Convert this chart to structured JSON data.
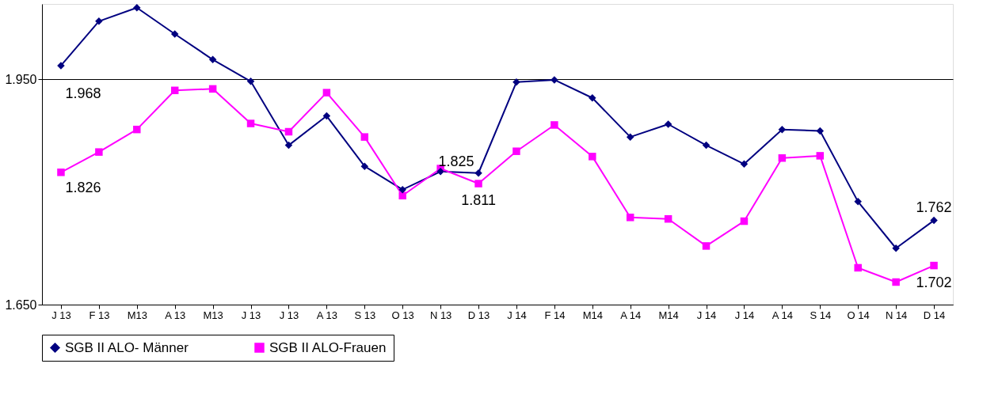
{
  "chart_data": {
    "type": "line",
    "categories": [
      "J 13",
      "F 13",
      "M13",
      "A 13",
      "M13",
      "J 13",
      "J 13",
      "A 13",
      "S 13",
      "O 13",
      "N 13",
      "D 13",
      "J 14",
      "F 14",
      "M14",
      "A 14",
      "M14",
      "J 14",
      "J 14",
      "A 14",
      "S 14",
      "O 14",
      "N 14",
      "D 14"
    ],
    "series": [
      {
        "name": "SGB II ALO- Männer",
        "color": "#000080",
        "marker": "diamond",
        "values": [
          1968,
          2027,
          2045,
          2010,
          1976,
          1947,
          1862,
          1901,
          1834,
          1803,
          1827,
          1825,
          1946,
          1949,
          1925,
          1873,
          1890,
          1862,
          1837,
          1883,
          1881,
          1787,
          1725,
          1762
        ],
        "value_labels": [
          "1.968",
          null,
          null,
          null,
          null,
          null,
          null,
          null,
          null,
          null,
          null,
          "1.825",
          null,
          null,
          null,
          null,
          null,
          null,
          null,
          null,
          null,
          null,
          null,
          "1.762"
        ]
      },
      {
        "name": "SGB II ALO-Frauen",
        "color": "#ff00ff",
        "marker": "square",
        "values": [
          1826,
          1853,
          1883,
          1935,
          1937,
          1891,
          1880,
          1932,
          1873,
          1795,
          1831,
          1811,
          1854,
          1889,
          1847,
          1766,
          1764,
          1728,
          1761,
          1845,
          1848,
          1699,
          1680,
          1702
        ],
        "value_labels": [
          "1.826",
          null,
          null,
          null,
          null,
          null,
          null,
          null,
          null,
          null,
          null,
          "1.811",
          null,
          null,
          null,
          null,
          null,
          null,
          null,
          null,
          null,
          null,
          null,
          "1.702"
        ]
      }
    ],
    "ylim": [
      1650,
      2050
    ],
    "yticks": [
      {
        "value": 1650,
        "label": "1.650"
      },
      {
        "value": 1950,
        "label": "1.950"
      }
    ],
    "grid": "y",
    "legend": "bottom"
  }
}
